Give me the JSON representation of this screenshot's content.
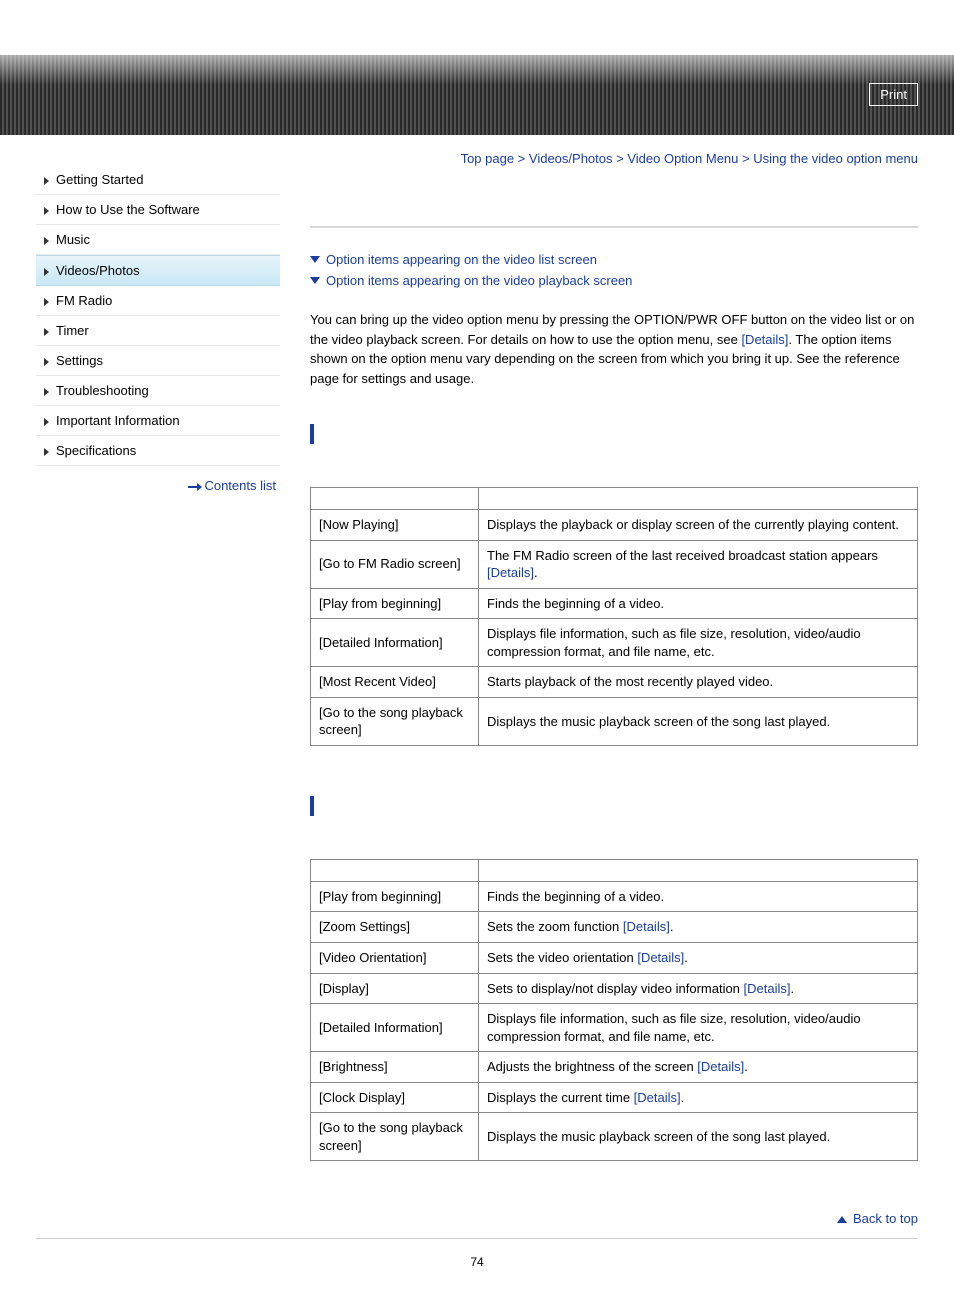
{
  "colors": {
    "link": "#1a3e9e",
    "band_dark": "#2a2a2a",
    "band_light": "#505050",
    "active_grad_top": "#e8f4fb",
    "active_grad_bottom": "#c8e8f5",
    "border_gray": "#888888",
    "hr_gray": "#d8d8d8",
    "sidebar_divider": "#e8e8e8"
  },
  "header": {
    "print_label": "Print"
  },
  "sidebar": {
    "items": [
      {
        "label": "Getting Started",
        "active": false
      },
      {
        "label": "How to Use the Software",
        "active": false
      },
      {
        "label": "Music",
        "active": false
      },
      {
        "label": "Videos/Photos",
        "active": true
      },
      {
        "label": "FM Radio",
        "active": false
      },
      {
        "label": "Timer",
        "active": false
      },
      {
        "label": "Settings",
        "active": false
      },
      {
        "label": "Troubleshooting",
        "active": false
      },
      {
        "label": "Important Information",
        "active": false
      },
      {
        "label": "Specifications",
        "active": false
      }
    ],
    "contents_list_label": "Contents list"
  },
  "breadcrumb": {
    "items": [
      "Top page",
      "Videos/Photos",
      "Video Option Menu",
      "Using the video option menu"
    ],
    "sep": " > "
  },
  "jump_links": [
    "Option items appearing on the video list screen",
    "Option items appearing on the video playback screen"
  ],
  "intro": {
    "text_before": "You can bring up the video option menu by pressing the OPTION/PWR OFF button on the video list or on the video playback screen. For details on how to use the option menu, see ",
    "details_label": "[Details]",
    "text_after": ". The option items shown on the option menu vary depending on the screen from which you bring it up. See the reference page for settings and usage."
  },
  "tables": [
    {
      "rows": [
        {
          "item": "[Now Playing]",
          "desc": "Displays the playback or display screen of the currently playing content."
        },
        {
          "item": "[Go to FM Radio screen]",
          "desc": "The FM Radio screen of the last received broadcast station appears ",
          "link": "[Details]",
          "suffix": "."
        },
        {
          "item": "[Play from beginning]",
          "desc": "Finds the beginning of a video."
        },
        {
          "item": "[Detailed Information]",
          "desc": "Displays file information, such as file size, resolution, video/audio compression format, and file name, etc."
        },
        {
          "item": "[Most Recent Video]",
          "desc": "Starts playback of the most recently played video."
        },
        {
          "item": "[Go to the song playback screen]",
          "desc": "Displays the music playback screen of the song last played."
        }
      ]
    },
    {
      "rows": [
        {
          "item": "[Play from beginning]",
          "desc": "Finds the beginning of a video."
        },
        {
          "item": "[Zoom Settings]",
          "desc": "Sets the zoom function ",
          "link": "[Details]",
          "suffix": "."
        },
        {
          "item": "[Video Orientation]",
          "desc": "Sets the video orientation ",
          "link": "[Details]",
          "suffix": "."
        },
        {
          "item": "[Display]",
          "desc": "Sets to display/not display video information ",
          "link": "[Details]",
          "suffix": "."
        },
        {
          "item": "[Detailed Information]",
          "desc": "Displays file information, such as file size, resolution, video/audio compression format, and file name, etc."
        },
        {
          "item": "[Brightness]",
          "desc": "Adjusts the brightness of the screen ",
          "link": "[Details]",
          "suffix": "."
        },
        {
          "item": "[Clock Display]",
          "desc": "Displays the current time ",
          "link": "[Details]",
          "suffix": "."
        },
        {
          "item": "[Go to the song playback screen]",
          "desc": "Displays the music playback screen of the song last played."
        }
      ]
    }
  ],
  "back_to_top": "Back to top",
  "page_number": "74"
}
